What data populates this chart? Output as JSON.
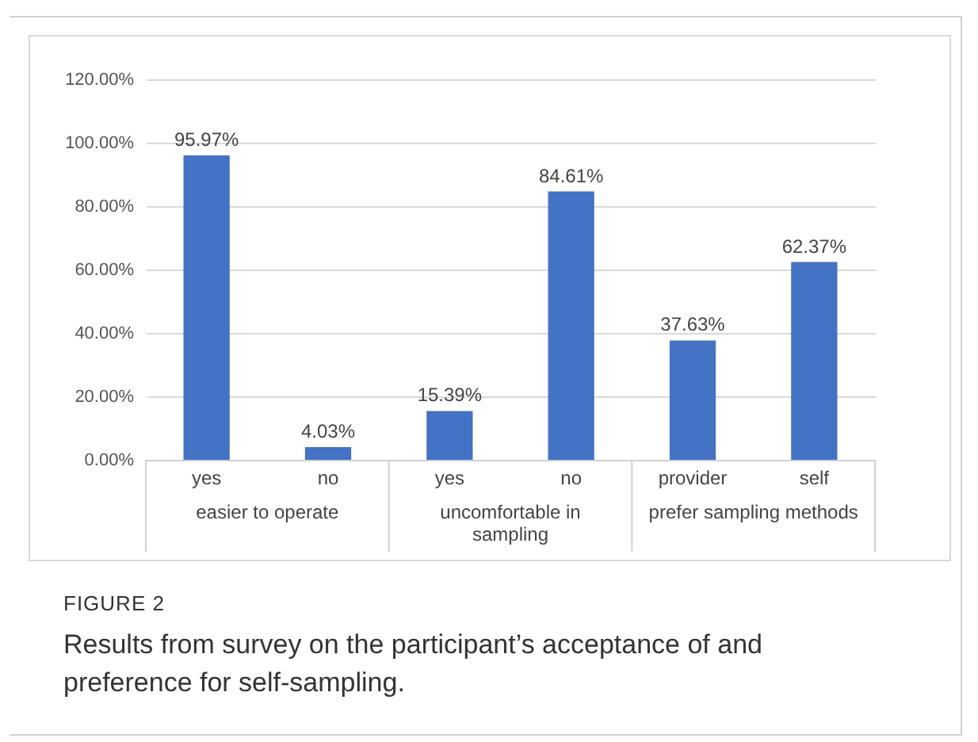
{
  "chart_data": {
    "type": "bar",
    "title": "FIGURE 2",
    "subtitle": "Results from survey on the participant’s acceptance of and preference for self-sampling.",
    "categories": [
      "yes",
      "no",
      "yes",
      "no",
      "provider",
      "self"
    ],
    "values": [
      95.97,
      4.03,
      15.39,
      84.61,
      37.63,
      62.37
    ],
    "value_labels": [
      "95.97%",
      "4.03%",
      "15.39%",
      "84.61%",
      "37.63%",
      "62.37%"
    ],
    "annotations": [
      "easier to operate",
      "uncomfortable in sampling",
      "prefer sampling methods"
    ],
    "color": "#4472c4",
    "ylim": [
      0,
      120
    ],
    "yticks": [
      {
        "value": 0,
        "label": "0.00%"
      },
      {
        "value": 20,
        "label": "20.00%"
      },
      {
        "value": 40,
        "label": "40.00%"
      },
      {
        "value": 60,
        "label": "60.00%"
      },
      {
        "value": 80,
        "label": "80.00%"
      },
      {
        "value": 100,
        "label": "100.00%"
      },
      {
        "value": 120,
        "label": "120.00%"
      }
    ],
    "grid": "y"
  }
}
